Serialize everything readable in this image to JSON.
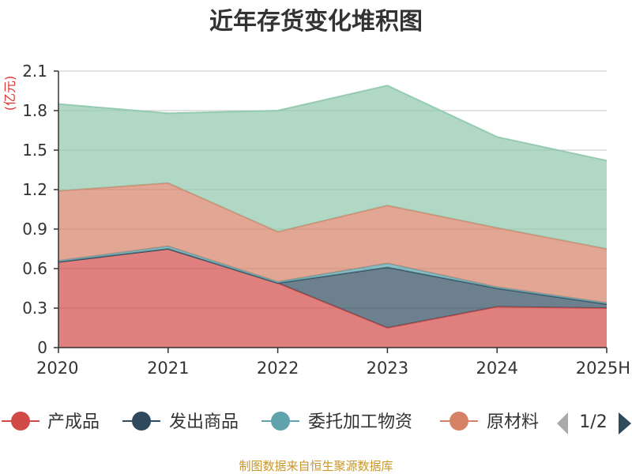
{
  "chart_data": {
    "type": "area",
    "stacked": true,
    "title": "近年存货变化堆积图",
    "unit_label": "(亿元)",
    "categories": [
      "2020",
      "2021",
      "2022",
      "2023",
      "2024",
      "2025H"
    ],
    "ylim": [
      0,
      2.1
    ],
    "yticks": [
      "0",
      "0.3",
      "0.6",
      "0.9",
      "1.2",
      "1.5",
      "1.8",
      "2.1"
    ],
    "grid": true,
    "series": [
      {
        "name": "产成品",
        "color": "#d14a47",
        "values": [
          0.65,
          0.75,
          0.49,
          0.15,
          0.31,
          0.3
        ]
      },
      {
        "name": "发出商品",
        "color": "#2f4a5c",
        "values": [
          0.0,
          0.0,
          0.0,
          0.46,
          0.14,
          0.03
        ]
      },
      {
        "name": "委托加工物资",
        "color": "#61a3ad",
        "values": [
          0.01,
          0.02,
          0.01,
          0.03,
          0.01,
          0.01
        ]
      },
      {
        "name": "原材料",
        "color": "#d58266",
        "values": [
          0.53,
          0.48,
          0.38,
          0.44,
          0.45,
          0.41
        ]
      },
      {
        "name": "",
        "color": "#8fc8ad",
        "values": [
          0.66,
          0.53,
          0.92,
          0.91,
          0.69,
          0.67
        ]
      }
    ],
    "legend": {
      "position": "bottom",
      "visible_entries": [
        "产成品",
        "发出商品",
        "委托加工物资",
        "原材料"
      ],
      "truncated_entry_text": "原材料",
      "page_indicator": "1/2"
    }
  },
  "footer": {
    "source_text": "制图数据来自恒生聚源数据库"
  }
}
